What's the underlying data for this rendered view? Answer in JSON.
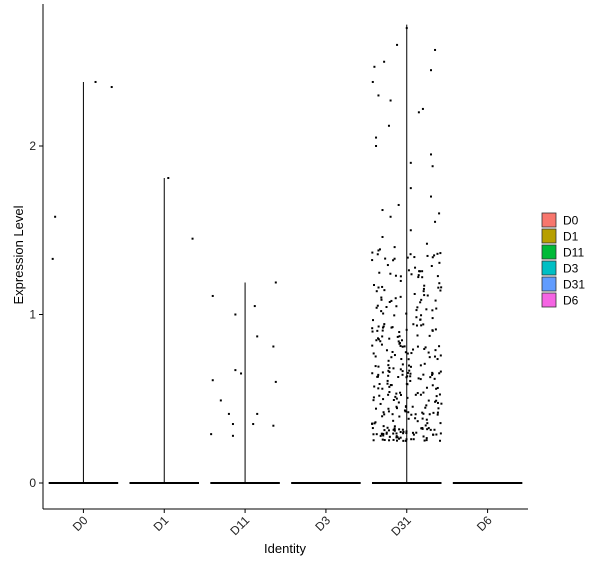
{
  "chart_data": {
    "type": "violin",
    "xlabel": "Identity",
    "ylabel": "Expression Level",
    "categories": [
      "D0",
      "D1",
      "D11",
      "D3",
      "D31",
      "D6"
    ],
    "ylim": [
      -0.15,
      2.85
    ],
    "yticks": [
      0,
      1,
      2
    ],
    "grid": false,
    "legend_position": "right",
    "legend": [
      {
        "label": "D0",
        "color": "#F8766D"
      },
      {
        "label": "D1",
        "color": "#B79F00"
      },
      {
        "label": "D11",
        "color": "#00BA38"
      },
      {
        "label": "D3",
        "color": "#00BFC4"
      },
      {
        "label": "D31",
        "color": "#619CFF"
      },
      {
        "label": "D6",
        "color": "#F564E3"
      }
    ],
    "violin_max": [
      2.38,
      1.81,
      1.19,
      0.0,
      2.72,
      0.0
    ],
    "series": [
      {
        "category": "D0",
        "points": [
          [
            -0.35,
            1.58
          ],
          [
            -0.38,
            1.33
          ],
          [
            0.15,
            2.38
          ],
          [
            0.35,
            2.35
          ]
        ]
      },
      {
        "category": "D1",
        "points": [
          [
            0.05,
            1.81
          ],
          [
            0.35,
            1.45
          ]
        ]
      },
      {
        "category": "D11",
        "points": [
          [
            -0.4,
            1.11
          ],
          [
            -0.12,
            1.0
          ],
          [
            0.12,
            1.05
          ],
          [
            0.38,
            1.19
          ],
          [
            0.15,
            0.87
          ],
          [
            0.35,
            0.81
          ],
          [
            -0.4,
            0.61
          ],
          [
            -0.12,
            0.67
          ],
          [
            -0.05,
            0.65
          ],
          [
            0.38,
            0.6
          ],
          [
            -0.3,
            0.49
          ],
          [
            -0.2,
            0.41
          ],
          [
            0.15,
            0.41
          ],
          [
            -0.15,
            0.35
          ],
          [
            0.1,
            0.35
          ],
          [
            0.35,
            0.34
          ],
          [
            -0.42,
            0.29
          ],
          [
            -0.15,
            0.28
          ]
        ]
      },
      {
        "category": "D3",
        "points": []
      },
      {
        "category": "D31",
        "points": [
          [
            0.0,
            2.7
          ],
          [
            -0.12,
            2.6
          ],
          [
            0.35,
            2.57
          ],
          [
            -0.4,
            2.47
          ],
          [
            -0.28,
            2.5
          ],
          [
            -0.42,
            2.38
          ],
          [
            0.3,
            2.45
          ],
          [
            -0.35,
            2.3
          ],
          [
            -0.2,
            2.27
          ],
          [
            0.15,
            2.2
          ],
          [
            0.2,
            2.22
          ],
          [
            -0.22,
            2.12
          ],
          [
            -0.38,
            2.05
          ],
          [
            -0.38,
            2.0
          ],
          [
            0.3,
            1.95
          ],
          [
            0.05,
            1.9
          ],
          [
            0.32,
            1.88
          ],
          [
            0.05,
            1.75
          ],
          [
            0.3,
            1.7
          ],
          [
            -0.1,
            1.65
          ],
          [
            -0.3,
            1.62
          ],
          [
            0.4,
            1.6
          ],
          [
            -0.2,
            1.58
          ],
          [
            0.35,
            1.55
          ],
          [
            0.05,
            1.5
          ],
          [
            -0.3,
            1.46
          ],
          [
            -0.15,
            1.4
          ],
          [
            0.25,
            1.42
          ],
          [
            -0.35,
            1.38
          ],
          [
            0.38,
            1.36
          ]
        ]
      },
      {
        "category": "D6",
        "points": []
      }
    ]
  }
}
